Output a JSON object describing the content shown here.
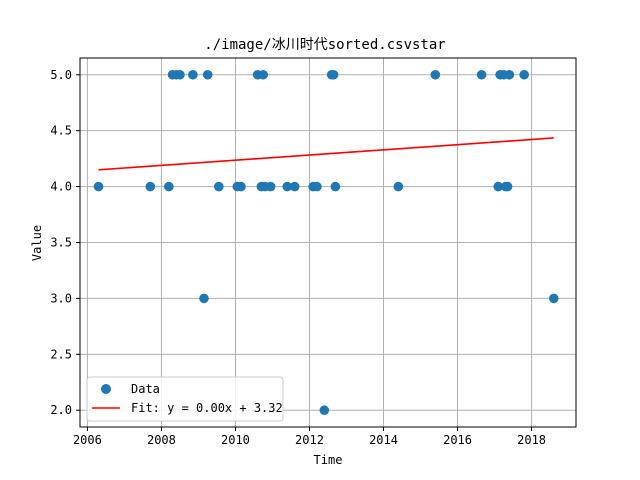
{
  "chart_data": {
    "type": "scatter",
    "title": "./image/冰川时代sorted.csvstar",
    "xlabel": "Time",
    "ylabel": "Value",
    "xlim": [
      2005.8,
      2019.2
    ],
    "ylim": [
      1.85,
      5.15
    ],
    "xticks": [
      2006,
      2008,
      2010,
      2012,
      2014,
      2016,
      2018
    ],
    "xtick_labels": [
      "2006",
      "2008",
      "2010",
      "2012",
      "2014",
      "2016",
      "2018"
    ],
    "yticks": [
      2.0,
      2.5,
      3.0,
      3.5,
      4.0,
      4.5,
      5.0
    ],
    "ytick_labels": [
      "2.0",
      "2.5",
      "3.0",
      "3.5",
      "4.0",
      "4.5",
      "5.0"
    ],
    "grid": true,
    "legend_position": "lower-left",
    "series": [
      {
        "name": "Data",
        "kind": "scatter",
        "color": "#1f77b4",
        "points": [
          [
            2006.3,
            4.0
          ],
          [
            2007.7,
            4.0
          ],
          [
            2008.2,
            4.0
          ],
          [
            2008.3,
            5.0
          ],
          [
            2008.4,
            5.0
          ],
          [
            2008.5,
            5.0
          ],
          [
            2008.85,
            5.0
          ],
          [
            2009.15,
            3.0
          ],
          [
            2009.25,
            5.0
          ],
          [
            2009.55,
            4.0
          ],
          [
            2010.05,
            4.0
          ],
          [
            2010.15,
            4.0
          ],
          [
            2010.6,
            5.0
          ],
          [
            2010.7,
            4.0
          ],
          [
            2010.75,
            5.0
          ],
          [
            2010.8,
            4.0
          ],
          [
            2010.95,
            4.0
          ],
          [
            2011.4,
            4.0
          ],
          [
            2011.6,
            4.0
          ],
          [
            2012.1,
            4.0
          ],
          [
            2012.2,
            4.0
          ],
          [
            2012.4,
            2.0
          ],
          [
            2012.6,
            5.0
          ],
          [
            2012.65,
            5.0
          ],
          [
            2012.7,
            4.0
          ],
          [
            2014.4,
            4.0
          ],
          [
            2015.4,
            5.0
          ],
          [
            2016.65,
            5.0
          ],
          [
            2017.1,
            4.0
          ],
          [
            2017.15,
            5.0
          ],
          [
            2017.25,
            5.0
          ],
          [
            2017.3,
            4.0
          ],
          [
            2017.35,
            4.0
          ],
          [
            2017.4,
            5.0
          ],
          [
            2017.8,
            5.0
          ],
          [
            2018.6,
            3.0
          ]
        ]
      },
      {
        "name": "Fit: y = 0.00x + 3.32",
        "kind": "line",
        "color": "#ff0000",
        "points": [
          [
            2006.3,
            4.15
          ],
          [
            2018.6,
            4.435
          ]
        ]
      }
    ]
  }
}
